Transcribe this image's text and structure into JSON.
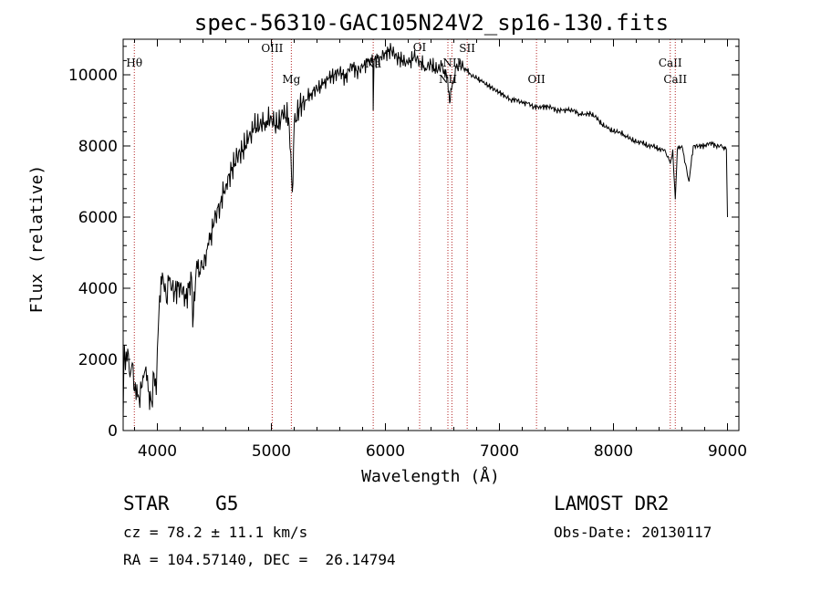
{
  "chart_data": {
    "type": "line",
    "title": "spec-56310-GAC105N24V2_sp16-130.fits",
    "xlabel": "Wavelength (Å)",
    "ylabel": "Flux (relative)",
    "xlim": [
      3700,
      9100
    ],
    "ylim": [
      0,
      11000
    ],
    "xticks": [
      4000,
      5000,
      6000,
      7000,
      8000,
      9000
    ],
    "yticks": [
      0,
      2000,
      4000,
      6000,
      8000,
      10000
    ],
    "xtick_labels": [
      "4000",
      "5000",
      "6000",
      "7000",
      "8000",
      "9000"
    ],
    "ytick_labels": [
      "0",
      "2000",
      "4000",
      "6000",
      "8000",
      "10000"
    ],
    "series": [
      {
        "name": "spectrum",
        "x": [
          3700,
          3710,
          3720,
          3740,
          3760,
          3780,
          3800,
          3820,
          3840,
          3860,
          3880,
          3900,
          3920,
          3950,
          3970,
          3990,
          4000,
          4020,
          4050,
          4080,
          4100,
          4150,
          4200,
          4250,
          4300,
          4310,
          4340,
          4400,
          4450,
          4500,
          4550,
          4600,
          4650,
          4700,
          4750,
          4800,
          4850,
          4900,
          4950,
          5000,
          5050,
          5100,
          5150,
          5170,
          5183,
          5200,
          5250,
          5300,
          5350,
          5400,
          5450,
          5500,
          5550,
          5600,
          5650,
          5700,
          5750,
          5800,
          5850,
          5890,
          5893,
          5900,
          5950,
          6000,
          6050,
          6100,
          6150,
          6200,
          6250,
          6300,
          6350,
          6400,
          6450,
          6500,
          6540,
          6563,
          6590,
          6620,
          6650,
          6700,
          6750,
          6800,
          6850,
          6900,
          6950,
          7000,
          7050,
          7100,
          7150,
          7200,
          7250,
          7300,
          7350,
          7400,
          7450,
          7500,
          7550,
          7600,
          7650,
          7700,
          7750,
          7800,
          7850,
          7900,
          7950,
          8000,
          8050,
          8100,
          8150,
          8200,
          8250,
          8300,
          8350,
          8400,
          8450,
          8498,
          8520,
          8542,
          8560,
          8600,
          8662,
          8700,
          8750,
          8800,
          8850,
          8900,
          8950,
          8990,
          9000
        ],
        "y": [
          300,
          2400,
          1700,
          2300,
          1500,
          1900,
          1100,
          1300,
          900,
          1200,
          1500,
          1800,
          1100,
          800,
          1600,
          1000,
          2300,
          3800,
          4300,
          3600,
          4200,
          3900,
          4100,
          3700,
          4300,
          2900,
          4500,
          4600,
          5200,
          5900,
          6400,
          6900,
          7300,
          7700,
          7900,
          8200,
          8500,
          8600,
          8700,
          8800,
          8500,
          8900,
          8800,
          7800,
          6700,
          8600,
          9100,
          9300,
          9500,
          9600,
          9700,
          9900,
          10000,
          10100,
          9900,
          10300,
          10100,
          10200,
          10400,
          10300,
          9000,
          10400,
          10500,
          10600,
          10700,
          10500,
          10400,
          10300,
          10500,
          10400,
          10200,
          10300,
          10100,
          10300,
          9900,
          9200,
          9800,
          10200,
          10300,
          10200,
          10000,
          9900,
          9800,
          9700,
          9600,
          9500,
          9400,
          9300,
          9300,
          9200,
          9200,
          9100,
          9100,
          9100,
          9100,
          9000,
          9000,
          9000,
          9000,
          8900,
          8900,
          8900,
          8800,
          8600,
          8500,
          8400,
          8400,
          8300,
          8200,
          8100,
          8100,
          8000,
          8000,
          7900,
          7900,
          7500,
          7900,
          6500,
          7900,
          8000,
          7000,
          8000,
          8000,
          8000,
          8100,
          8000,
          8000,
          7900,
          6000
        ]
      }
    ],
    "lines": [
      {
        "label": "Hθ",
        "x": 3798
      },
      {
        "label": "OIII",
        "x": 5007
      },
      {
        "label": "Mg",
        "x": 5175
      },
      {
        "label": "Na",
        "x": 5893
      },
      {
        "label": "OI",
        "x": 6300
      },
      {
        "label": "NII",
        "x": 6548
      },
      {
        "label": "NII",
        "x": 6583
      },
      {
        "label": "OII",
        "x": 7325
      },
      {
        "label": "SII",
        "x": 6717
      },
      {
        "label": "CaII",
        "x": 8498
      },
      {
        "label": "CaII",
        "x": 8542
      }
    ]
  },
  "info": {
    "class": "STAR    G5",
    "survey": "LAMOST DR2",
    "cz": "cz = 78.2 ± 11.1 km/s",
    "obs_date": "Obs-Date: 20130117",
    "radec": "RA = 104.57140, DEC =  26.14794"
  }
}
